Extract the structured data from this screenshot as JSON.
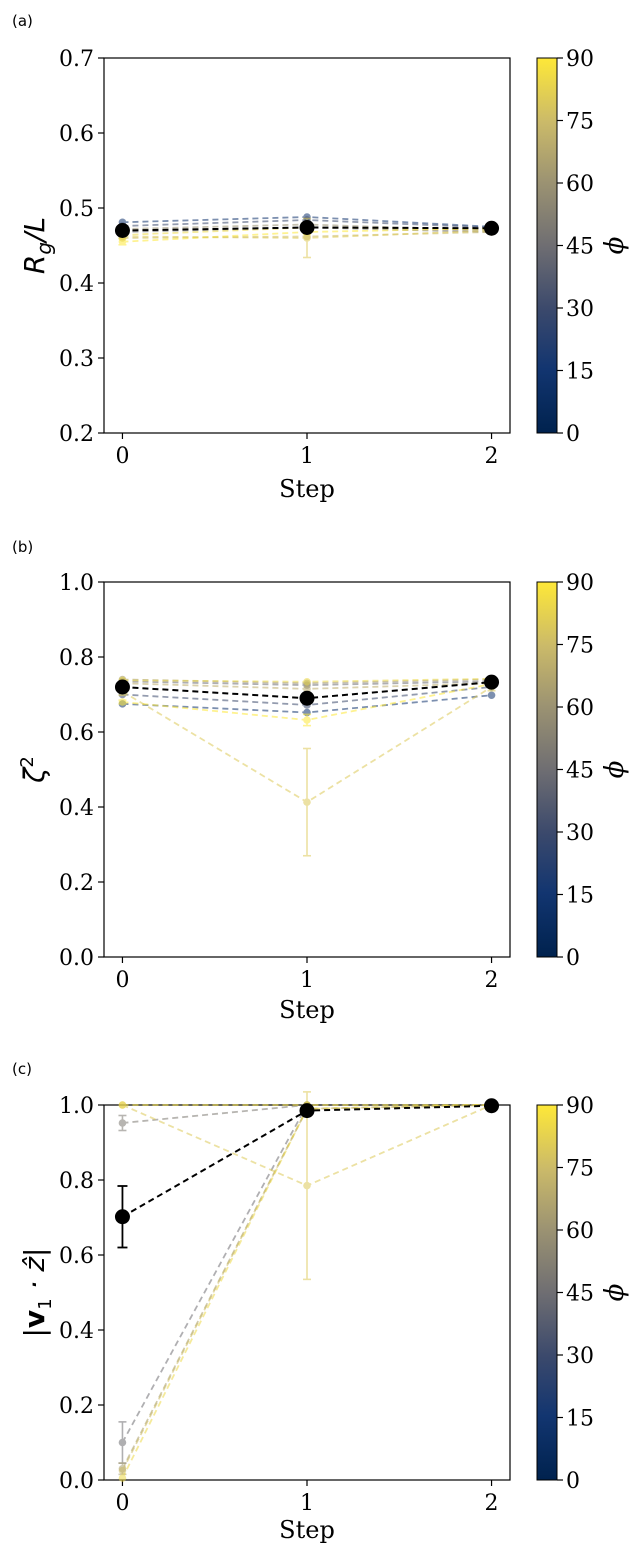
{
  "chart_data": [
    {
      "type": "line",
      "panel_label": "(a)",
      "xlabel": "Step",
      "ylabel": "Rg/L",
      "ylabel_main": "R",
      "ylabel_sub": "g",
      "ylabel_rest": "/L",
      "x": [
        0,
        1,
        2
      ],
      "xticks": [
        "0",
        "1",
        "2"
      ],
      "xlim": [
        -0.1,
        2.1
      ],
      "ylim": [
        0.2,
        0.7
      ],
      "yticks": [
        "0.2",
        "0.3",
        "0.4",
        "0.5",
        "0.6",
        "0.7"
      ],
      "colorbar": {
        "label": "ϕ",
        "range": [
          0,
          90
        ],
        "ticks": [
          "0",
          "15",
          "30",
          "45",
          "60",
          "75",
          "90"
        ]
      },
      "series": [
        {
          "phi": 15,
          "values": [
            0.481,
            0.488,
            0.475
          ]
        },
        {
          "phi": 30,
          "values": [
            0.476,
            0.484,
            0.474
          ]
        },
        {
          "phi": 45,
          "values": [
            0.468,
            0.474,
            0.468
          ]
        },
        {
          "phi": 60,
          "values": [
            0.472,
            0.478,
            0.47
          ]
        },
        {
          "phi": 75,
          "values": [
            0.46,
            0.462,
            0.468
          ]
        },
        {
          "phi": 85,
          "values": [
            0.464,
            0.474,
            0.472
          ]
        },
        {
          "phi": 90,
          "values": [
            0.455,
            0.468,
            0.473
          ],
          "err": [
            0.004,
            0.003,
            0.003
          ]
        },
        {
          "phi": 80,
          "values": [
            0.462,
            0.46,
            0.47
          ],
          "err": [
            0.002,
            0.026,
            0.003
          ]
        }
      ],
      "mean": {
        "values": [
          0.47,
          0.474,
          0.473
        ]
      }
    },
    {
      "type": "line",
      "panel_label": "(b)",
      "xlabel": "Step",
      "ylabel": "ζ²",
      "ylabel_main": "ζ",
      "ylabel_sup": "2",
      "x": [
        0,
        1,
        2
      ],
      "xticks": [
        "0",
        "1",
        "2"
      ],
      "xlim": [
        -0.1,
        2.1
      ],
      "ylim": [
        0.0,
        1.0
      ],
      "yticks": [
        "0.0",
        "0.2",
        "0.4",
        "0.6",
        "0.8",
        "1.0"
      ],
      "colorbar": {
        "label": "ϕ",
        "range": [
          0,
          90
        ],
        "ticks": [
          "0",
          "15",
          "30",
          "45",
          "60",
          "75",
          "90"
        ]
      },
      "series": [
        {
          "phi": 15,
          "values": [
            0.675,
            0.652,
            0.698
          ]
        },
        {
          "phi": 30,
          "values": [
            0.7,
            0.672,
            0.72
          ]
        },
        {
          "phi": 45,
          "values": [
            0.735,
            0.725,
            0.735
          ]
        },
        {
          "phi": 60,
          "values": [
            0.74,
            0.73,
            0.74
          ]
        },
        {
          "phi": 70,
          "values": [
            0.73,
            0.715,
            0.73
          ]
        },
        {
          "phi": 85,
          "values": [
            0.738,
            0.734,
            0.742
          ]
        },
        {
          "phi": 90,
          "values": [
            0.68,
            0.632,
            0.728
          ],
          "err": [
            0.005,
            0.015,
            0.005
          ]
        },
        {
          "phi": 80,
          "values": [
            0.708,
            0.413,
            0.72
          ],
          "err": [
            0.01,
            0.143,
            0.01
          ]
        }
      ],
      "mean": {
        "values": [
          0.72,
          0.69,
          0.733
        ]
      }
    },
    {
      "type": "line",
      "panel_label": "(c)",
      "xlabel": "Step",
      "ylabel": "|v1 · ẑ|",
      "ylabel_main": "v",
      "ylabel_sub": "1",
      "ylabel_rest": "· ẑ",
      "x": [
        0,
        1,
        2
      ],
      "xticks": [
        "0",
        "1",
        "2"
      ],
      "xlim": [
        -0.1,
        2.1
      ],
      "ylim": [
        0.0,
        1.0
      ],
      "yticks": [
        "0.0",
        "0.2",
        "0.4",
        "0.6",
        "0.8",
        "1.0"
      ],
      "colorbar": {
        "label": "ϕ",
        "range": [
          0,
          90
        ],
        "ticks": [
          "0",
          "15",
          "30",
          "45",
          "60",
          "75",
          "90"
        ]
      },
      "series": [
        {
          "phi": 50,
          "values": [
            0.952,
            1.0,
            1.0
          ],
          "err": [
            0.02,
            0,
            0
          ]
        },
        {
          "phi": 45,
          "values": [
            0.1,
            1.0,
            1.0
          ],
          "err": [
            0.055,
            0,
            0
          ]
        },
        {
          "phi": 65,
          "values": [
            0.03,
            0.99,
            1.0
          ],
          "err": [
            0.015,
            0,
            0
          ]
        },
        {
          "phi": 75,
          "values": [
            0.025,
            0.99,
            1.0
          ]
        },
        {
          "phi": 85,
          "values": [
            0.005,
            0.99,
            1.0
          ]
        },
        {
          "phi": 90,
          "values": [
            1.0,
            1.0,
            1.0
          ]
        },
        {
          "phi": 80,
          "values": [
            1.0,
            0.785,
            1.0
          ],
          "err": [
            0,
            0.25,
            0
          ]
        }
      ],
      "mean": {
        "values": [
          0.702,
          0.985,
          0.998
        ],
        "err": [
          0.082,
          0.005,
          0.002
        ]
      }
    }
  ]
}
